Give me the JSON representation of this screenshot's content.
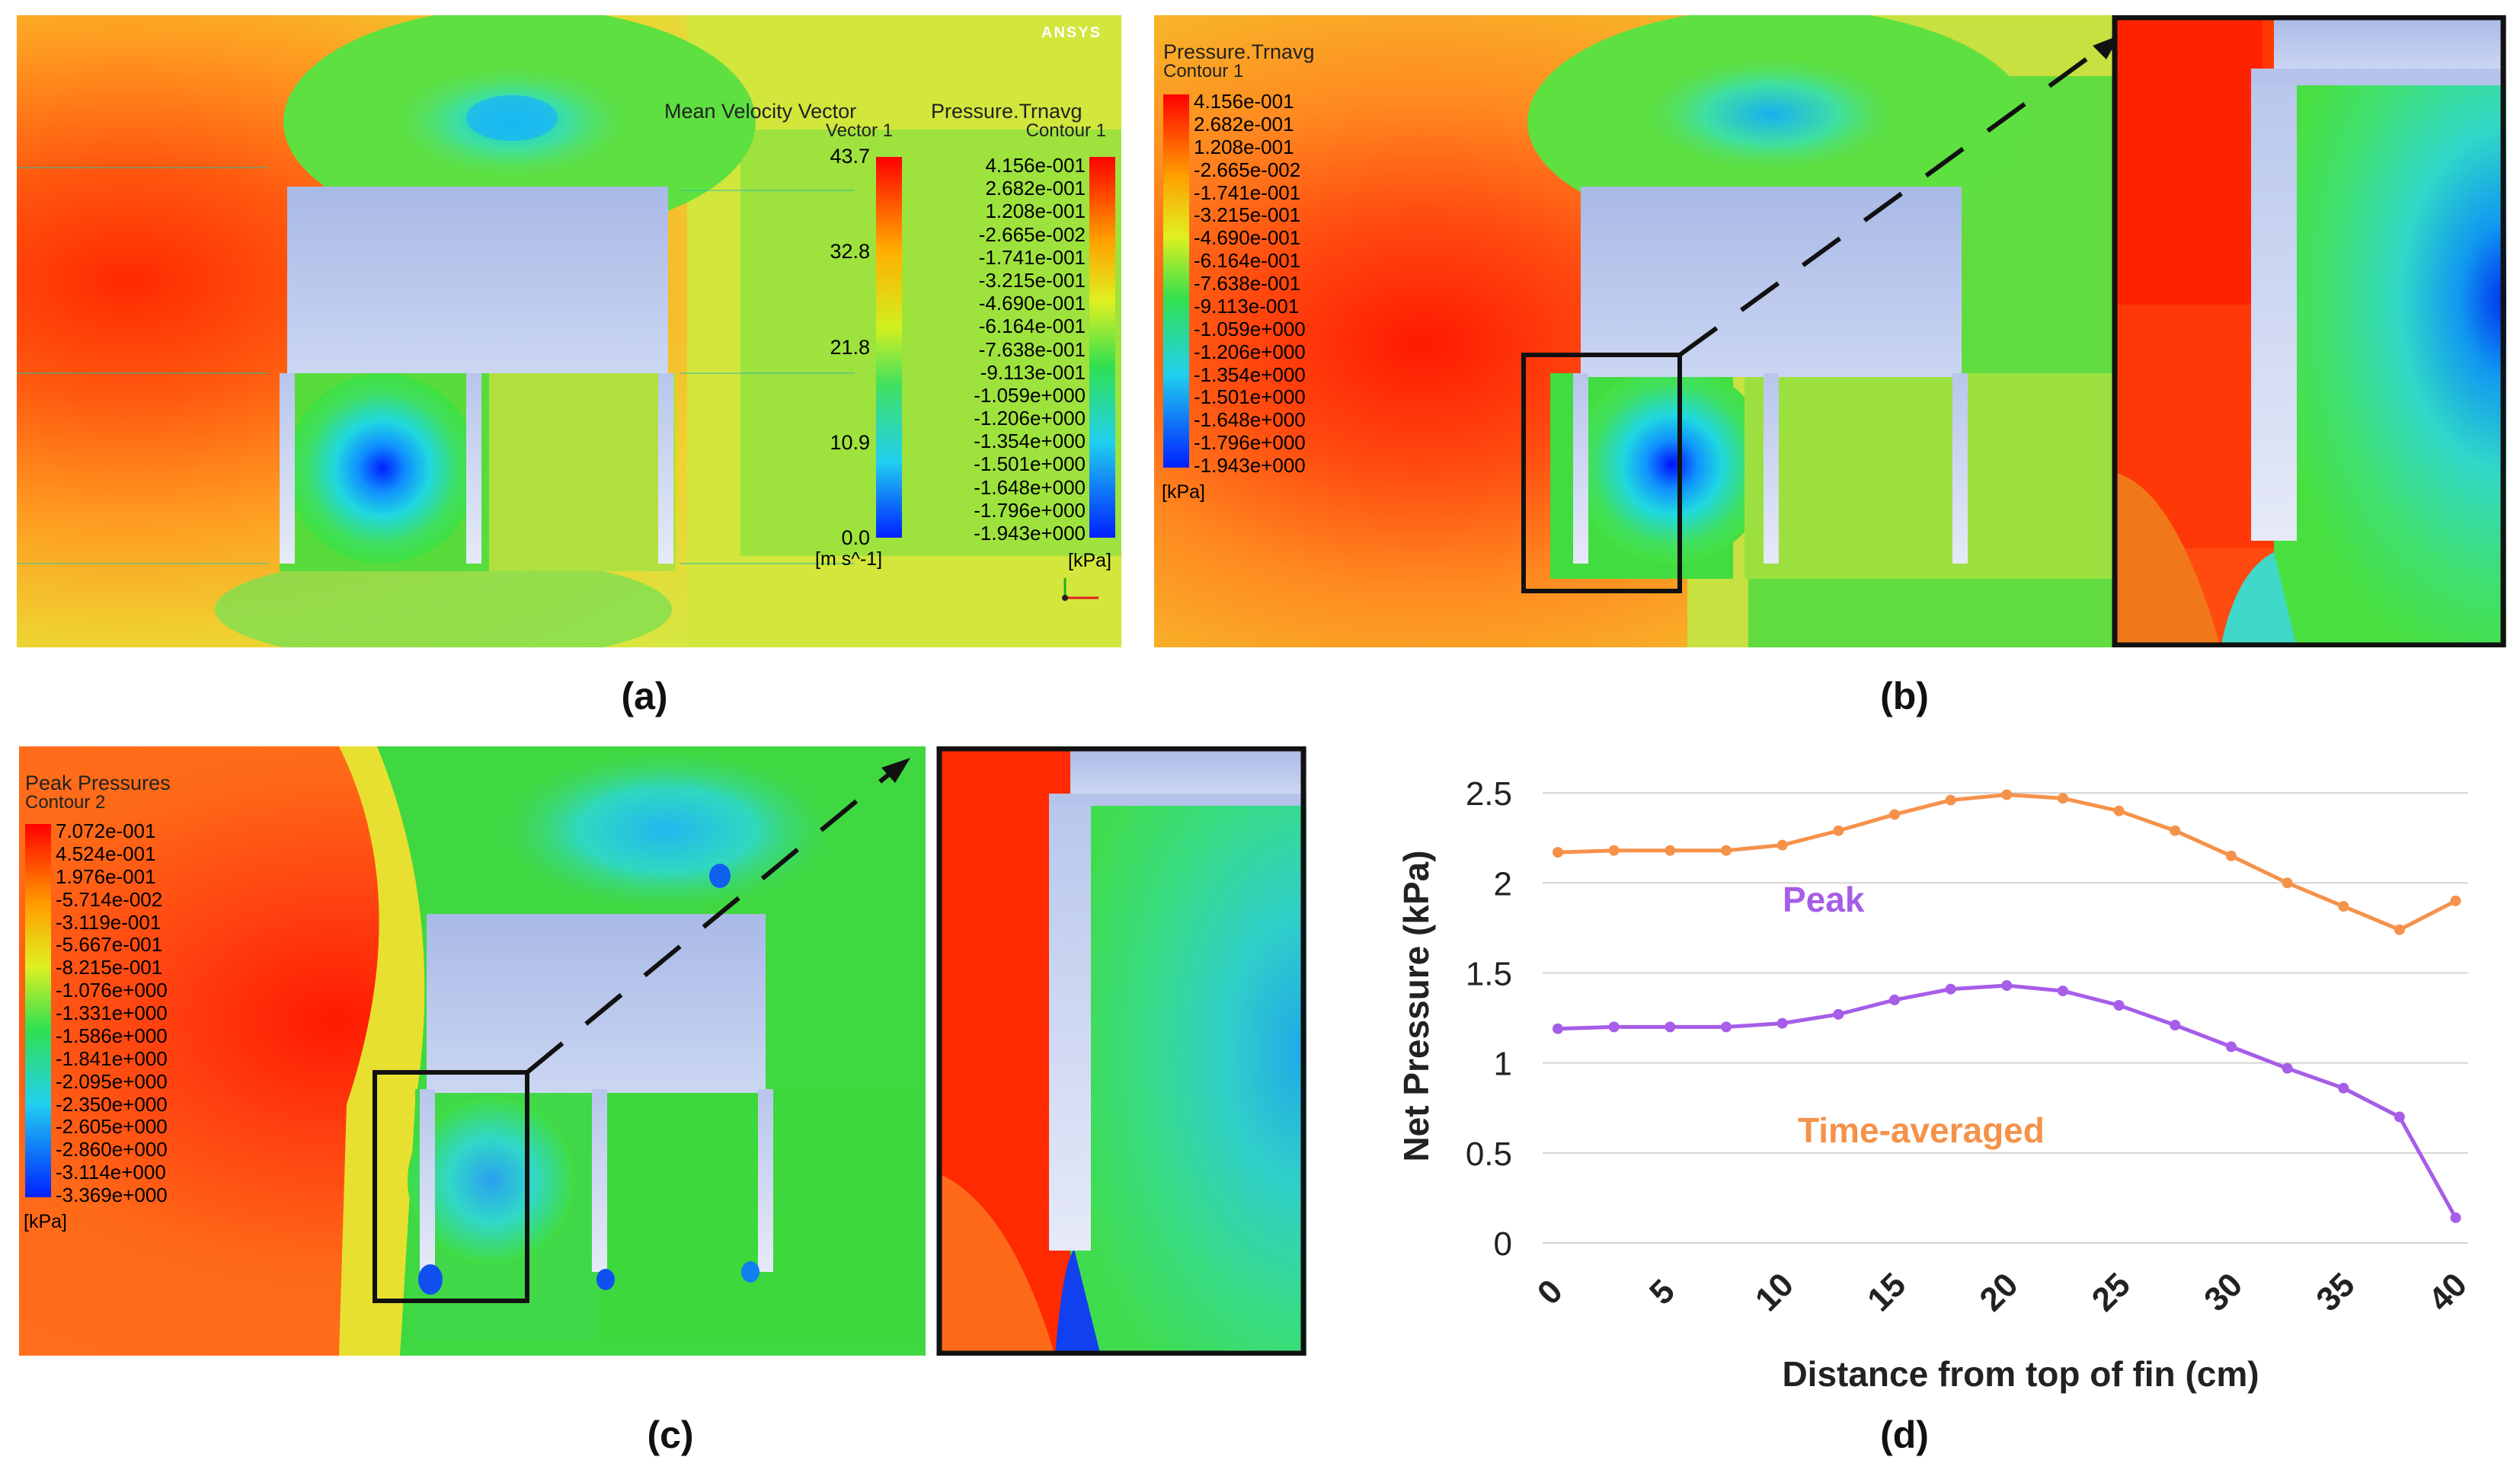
{
  "captions": {
    "a": "(a)",
    "b": "(b)",
    "c": "(c)",
    "d": "(d)"
  },
  "panel_a": {
    "logo": "ANSYS",
    "velocity_legend": {
      "title": "Mean Velocity Vector",
      "subtitle": "Vector 1",
      "ticks": [
        "43.7",
        "32.8",
        "21.8",
        "10.9",
        "0.0"
      ],
      "unit": "[m s^-1]"
    },
    "pressure_legend": {
      "title": "Pressure.Trnavg",
      "subtitle": "Contour 1",
      "ticks": [
        "4.156e-001",
        "2.682e-001",
        "1.208e-001",
        "-2.665e-002",
        "-1.741e-001",
        "-3.215e-001",
        "-4.690e-001",
        "-6.164e-001",
        "-7.638e-001",
        "-9.113e-001",
        "-1.059e+000",
        "-1.206e+000",
        "-1.354e+000",
        "-1.501e+000",
        "-1.648e+000",
        "-1.796e+000",
        "-1.943e+000"
      ],
      "unit": "[kPa]"
    }
  },
  "panel_b": {
    "legend": {
      "title": "Pressure.Trnavg",
      "subtitle": "Contour 1",
      "ticks": [
        "4.156e-001",
        "2.682e-001",
        "1.208e-001",
        "-2.665e-002",
        "-1.741e-001",
        "-3.215e-001",
        "-4.690e-001",
        "-6.164e-001",
        "-7.638e-001",
        "-9.113e-001",
        "-1.059e+000",
        "-1.206e+000",
        "-1.354e+000",
        "-1.501e+000",
        "-1.648e+000",
        "-1.796e+000",
        "-1.943e+000"
      ],
      "unit": "[kPa]"
    }
  },
  "panel_c": {
    "legend": {
      "title": "Peak Pressures",
      "subtitle": "Contour 2",
      "ticks": [
        "7.072e-001",
        "4.524e-001",
        "1.976e-001",
        "-5.714e-002",
        "-3.119e-001",
        "-5.667e-001",
        "-8.215e-001",
        "-1.076e+000",
        "-1.331e+000",
        "-1.586e+000",
        "-1.841e+000",
        "-2.095e+000",
        "-2.350e+000",
        "-2.605e+000",
        "-2.860e+000",
        "-3.114e+000",
        "-3.369e+000"
      ],
      "unit": "[kPa]"
    }
  },
  "chart_data": {
    "type": "line",
    "title": "",
    "xlabel": "Distance from top of fin (cm)",
    "ylabel": "Net Pressure (kPa)",
    "xlim": [
      0,
      40
    ],
    "ylim": [
      0,
      2.5
    ],
    "xticks": [
      0,
      5,
      10,
      15,
      20,
      25,
      30,
      35,
      40
    ],
    "yticks": [
      0,
      0.5,
      1,
      1.5,
      2,
      2.5
    ],
    "ytick_labels": [
      "0",
      "0.5",
      "1",
      "1.5",
      "2",
      "2.5"
    ],
    "grid": "horizontal",
    "series": [
      {
        "name": "Time-averaged",
        "color": "#f5924a",
        "x": [
          0,
          2.5,
          5,
          7.5,
          10,
          12.5,
          15,
          17.5,
          20,
          22.5,
          25,
          27.5,
          30,
          32.5,
          35,
          37.5,
          40
        ],
        "y": [
          2.17,
          2.18,
          2.18,
          2.18,
          2.21,
          2.29,
          2.38,
          2.46,
          2.49,
          2.47,
          2.4,
          2.29,
          2.15,
          2.0,
          1.87,
          1.74,
          1.9
        ]
      },
      {
        "name": "Peak",
        "color": "#a65de8",
        "x": [
          0,
          2.5,
          5,
          7.5,
          10,
          12.5,
          15,
          17.5,
          20,
          22.5,
          25,
          27.5,
          30,
          32.5,
          35,
          37.5,
          40
        ],
        "y": [
          1.19,
          1.2,
          1.2,
          1.2,
          1.22,
          1.27,
          1.35,
          1.41,
          1.43,
          1.4,
          1.32,
          1.21,
          1.09,
          0.97,
          0.86,
          0.7,
          0.14
        ]
      }
    ],
    "annotations": [
      {
        "text": "Peak",
        "color": "#a65de8"
      },
      {
        "text": "Time-averaged",
        "color": "#f5924a"
      }
    ]
  }
}
